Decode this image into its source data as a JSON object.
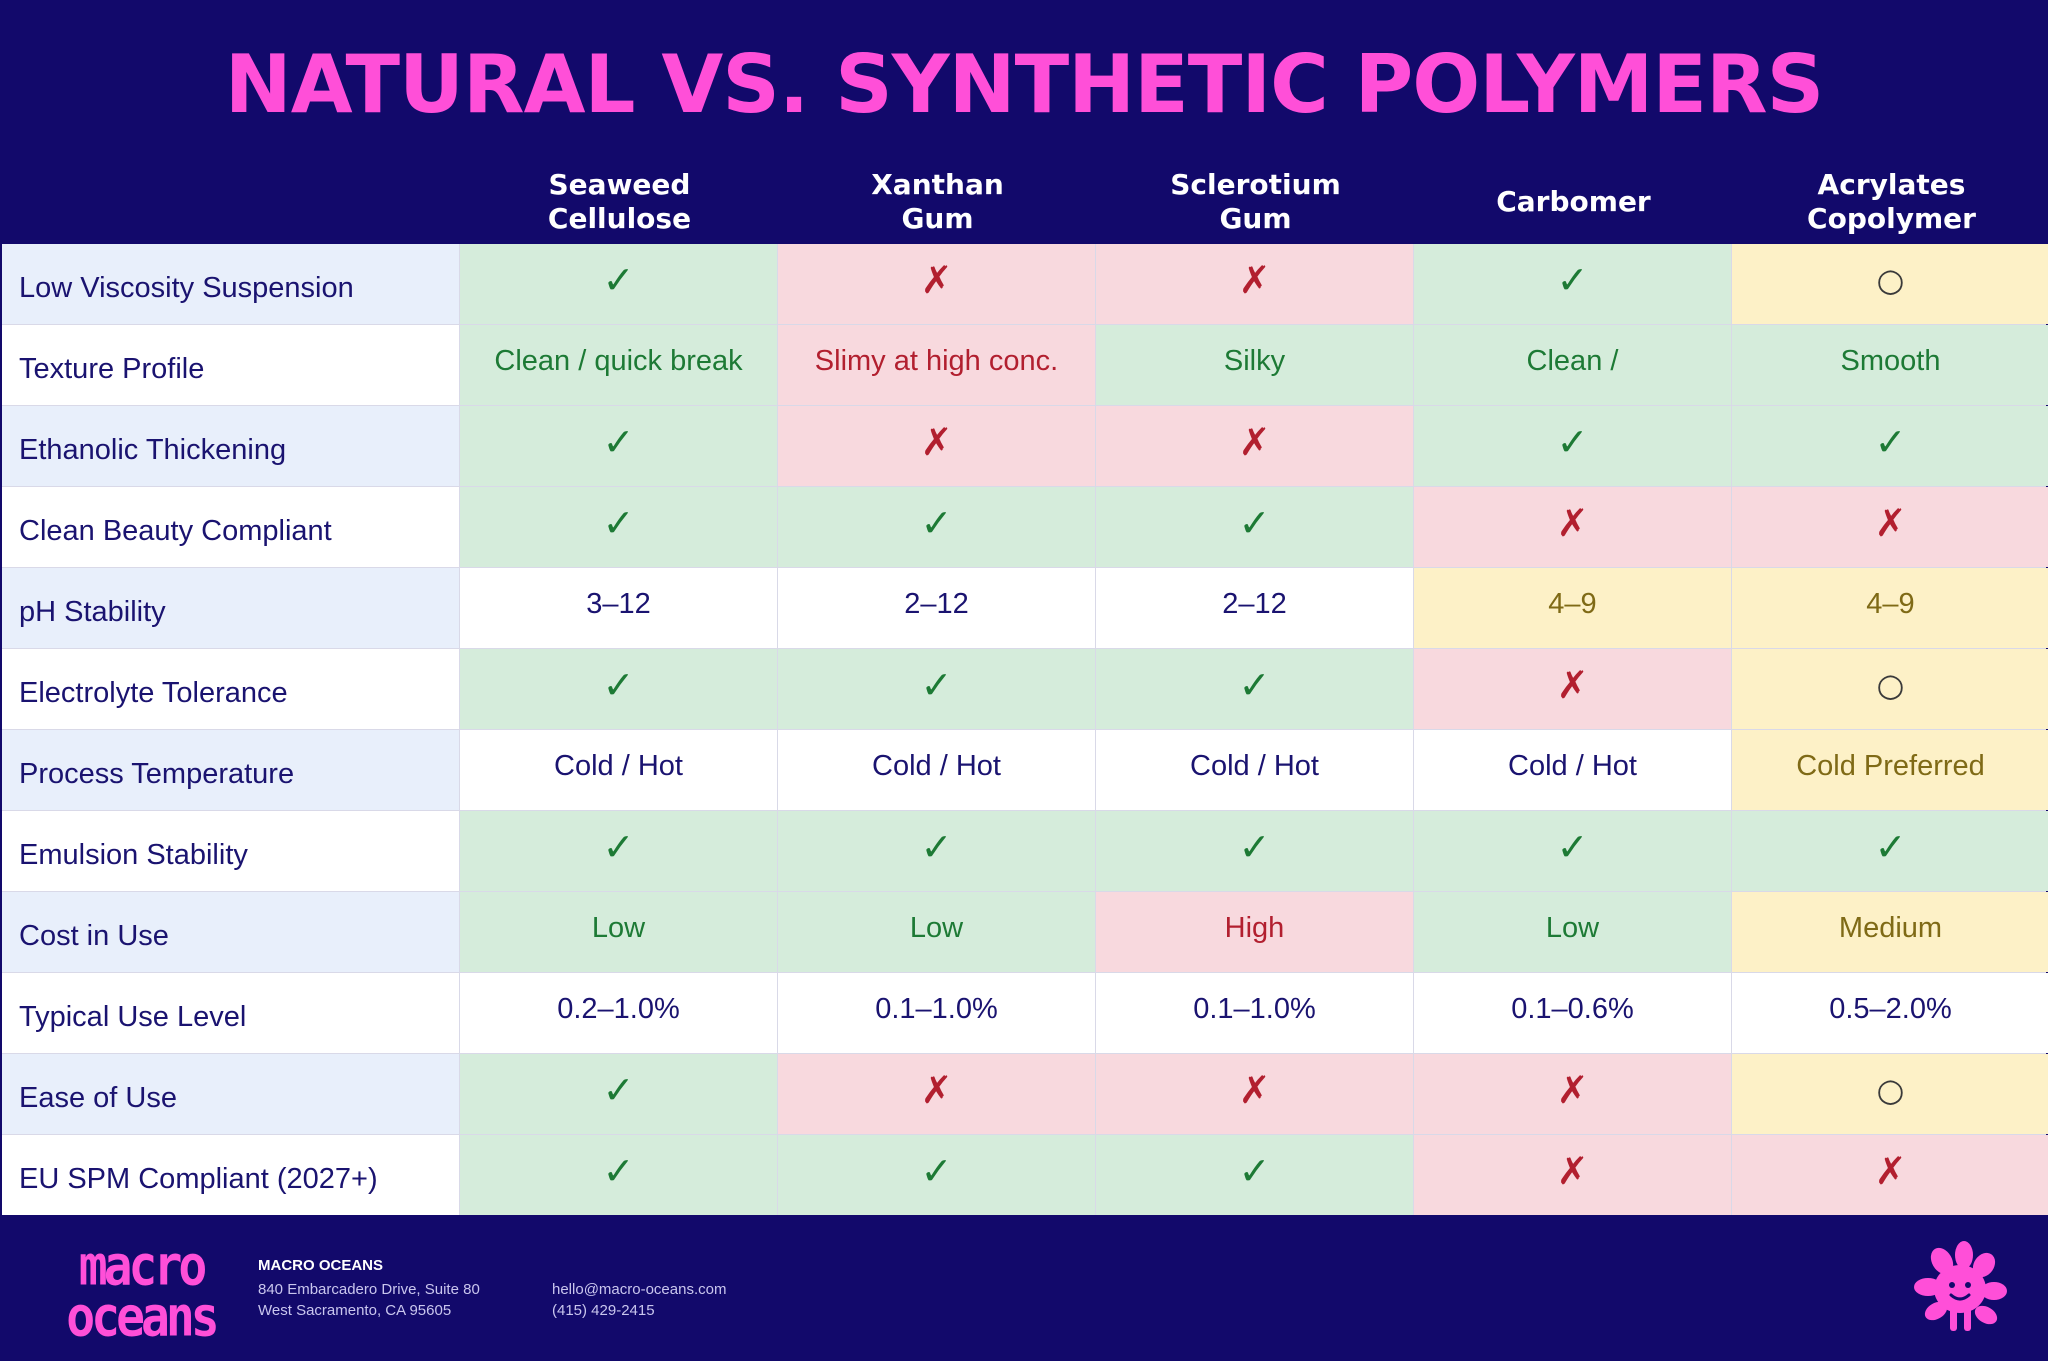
{
  "title": "NATURAL VS. SYNTHETIC POLYMERS",
  "columns": [
    "Seaweed\nCellulose",
    "Xanthan\nGum",
    "Sclerotium\nGum",
    "Carbomer",
    "Acrylates\nCopolymer"
  ],
  "rows": [
    {
      "label": "Low Viscosity Suspension",
      "cells": [
        {
          "v": "✓",
          "s": "g"
        },
        {
          "v": "✗",
          "s": "r"
        },
        {
          "v": "✗",
          "s": "r"
        },
        {
          "v": "✓",
          "s": "g"
        },
        {
          "v": "○",
          "s": "y"
        }
      ]
    },
    {
      "label": "Texture Profile",
      "cells": [
        {
          "v": "Clean / quick break",
          "s": "g"
        },
        {
          "v": "Slimy at high conc.",
          "s": "r"
        },
        {
          "v": "Silky",
          "s": "g"
        },
        {
          "v": "Clean /",
          "s": "g"
        },
        {
          "v": "Smooth",
          "s": "g"
        }
      ]
    },
    {
      "label": "Ethanolic Thickening",
      "cells": [
        {
          "v": "✓",
          "s": "g"
        },
        {
          "v": "✗",
          "s": "r"
        },
        {
          "v": "✗",
          "s": "r"
        },
        {
          "v": "✓",
          "s": "g"
        },
        {
          "v": "✓",
          "s": "g"
        }
      ]
    },
    {
      "label": "Clean Beauty Compliant",
      "cells": [
        {
          "v": "✓",
          "s": "g"
        },
        {
          "v": "✓",
          "s": "g"
        },
        {
          "v": "✓",
          "s": "g"
        },
        {
          "v": "✗",
          "s": "r"
        },
        {
          "v": "✗",
          "s": "r"
        }
      ]
    },
    {
      "label": "pH Stability",
      "cells": [
        {
          "v": "3–12",
          "s": "w"
        },
        {
          "v": "2–12",
          "s": "w"
        },
        {
          "v": "2–12",
          "s": "w"
        },
        {
          "v": "4–9",
          "s": "y"
        },
        {
          "v": "4–9",
          "s": "y"
        }
      ]
    },
    {
      "label": "Electrolyte Tolerance",
      "cells": [
        {
          "v": "✓",
          "s": "g"
        },
        {
          "v": "✓",
          "s": "g"
        },
        {
          "v": "✓",
          "s": "g"
        },
        {
          "v": "✗",
          "s": "r"
        },
        {
          "v": "○",
          "s": "y"
        }
      ]
    },
    {
      "label": "Process Temperature",
      "cells": [
        {
          "v": "Cold / Hot",
          "s": "w"
        },
        {
          "v": "Cold / Hot",
          "s": "w"
        },
        {
          "v": "Cold / Hot",
          "s": "w"
        },
        {
          "v": "Cold / Hot",
          "s": "w"
        },
        {
          "v": "Cold Preferred",
          "s": "y"
        }
      ]
    },
    {
      "label": "Emulsion Stability",
      "cells": [
        {
          "v": "✓",
          "s": "g"
        },
        {
          "v": "✓",
          "s": "g"
        },
        {
          "v": "✓",
          "s": "g"
        },
        {
          "v": "✓",
          "s": "g"
        },
        {
          "v": "✓",
          "s": "g"
        }
      ]
    },
    {
      "label": "Cost in Use",
      "cells": [
        {
          "v": "Low",
          "s": "g"
        },
        {
          "v": "Low",
          "s": "g"
        },
        {
          "v": "High",
          "s": "r"
        },
        {
          "v": "Low",
          "s": "g"
        },
        {
          "v": "Medium",
          "s": "y"
        }
      ]
    },
    {
      "label": "Typical Use Level",
      "cells": [
        {
          "v": "0.2–1.0%",
          "s": "w"
        },
        {
          "v": "0.1–1.0%",
          "s": "w"
        },
        {
          "v": "0.1–1.0%",
          "s": "w"
        },
        {
          "v": "0.1–0.6%",
          "s": "w"
        },
        {
          "v": "0.5–2.0%",
          "s": "w"
        }
      ]
    },
    {
      "label": "Ease of Use",
      "cells": [
        {
          "v": "✓",
          "s": "g"
        },
        {
          "v": "✗",
          "s": "r"
        },
        {
          "v": "✗",
          "s": "r"
        },
        {
          "v": "✗",
          "s": "r"
        },
        {
          "v": "○",
          "s": "y"
        }
      ]
    },
    {
      "label": "EU SPM Compliant (2027+)",
      "cells": [
        {
          "v": "✓",
          "s": "g"
        },
        {
          "v": "✓",
          "s": "g"
        },
        {
          "v": "✓",
          "s": "g"
        },
        {
          "v": "✗",
          "s": "r"
        },
        {
          "v": "✗",
          "s": "r"
        }
      ]
    }
  ],
  "footer": {
    "logo_line1": "macro",
    "logo_line2": "oceans",
    "company": "MACRO OCEANS",
    "address_line1": "840 Embarcadero Drive, Suite 80",
    "address_line2": "West Sacramento, CA 95605",
    "email": "hello@macro-oceans.com",
    "phone": "(415) 429-2415",
    "mascot_icon": "seaweed-mascot-icon"
  },
  "colors": {
    "background": "#12096b",
    "title": "#ff4fd8",
    "good": "#d5ecdb",
    "bad": "#f8d9de",
    "caution": "#fdf1c7"
  }
}
